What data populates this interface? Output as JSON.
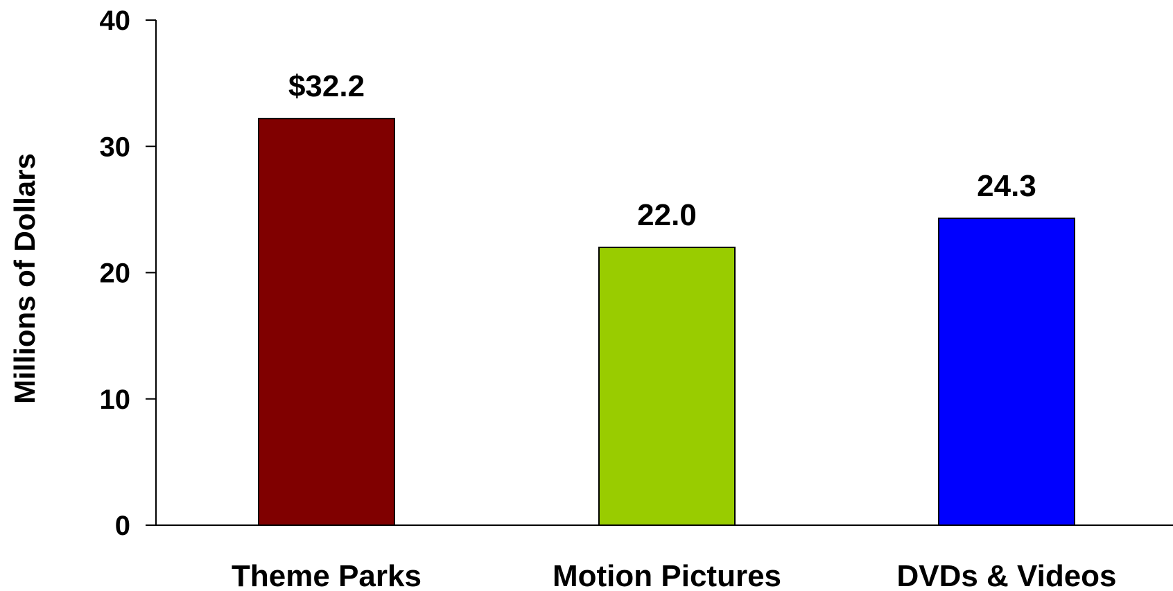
{
  "chart_data": {
    "type": "bar",
    "categories": [
      "Theme Parks",
      "Motion Pictures",
      "DVDs & Videos"
    ],
    "values": [
      32.2,
      22.0,
      24.3
    ],
    "data_labels": [
      "$32.2",
      "22.0",
      "24.3"
    ],
    "colors": [
      "#800000",
      "#99cc00",
      "#0000ff"
    ],
    "title": "",
    "xlabel": "",
    "ylabel": "Millions of Dollars",
    "ylim": [
      0,
      40
    ],
    "yticks": [
      0,
      10,
      20,
      30,
      40
    ],
    "ytick_labels": [
      "0",
      "10",
      "20",
      "30",
      "40"
    ],
    "grid": false,
    "legend": "none"
  }
}
